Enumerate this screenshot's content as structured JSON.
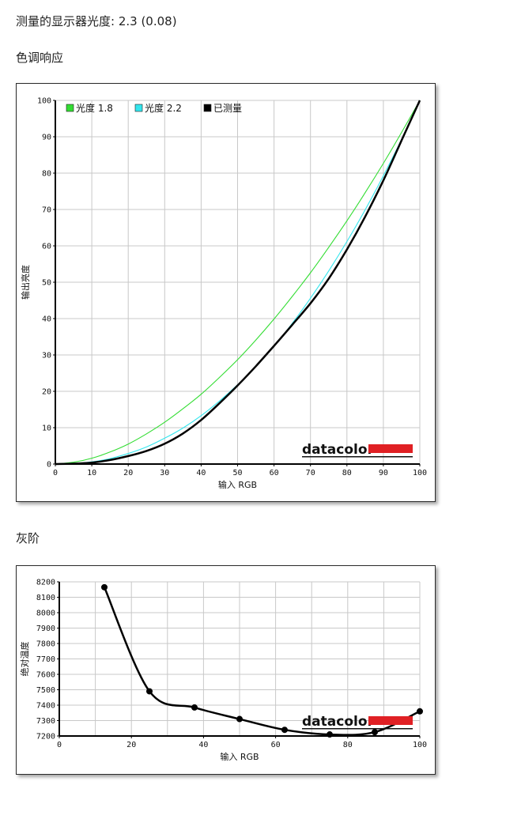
{
  "page": {
    "gamma_heading": "测量的显示器光度: 2.3 (0.08)",
    "tone_heading": "色调响应",
    "gray_heading": "灰阶"
  },
  "colors": {
    "gamma18": "#33dd33",
    "gamma22": "#33e6ee",
    "measured": "#000000",
    "grid": "#c8c8c8",
    "brand_bar": "#e02024"
  },
  "chart_data": [
    {
      "type": "line",
      "xlabel": "输入 RGB",
      "ylabel": "输出亮度",
      "xlim": [
        0,
        100
      ],
      "ylim": [
        0,
        100
      ],
      "xticks": [
        0,
        10,
        20,
        30,
        40,
        50,
        60,
        70,
        80,
        90,
        100
      ],
      "yticks": [
        0,
        10,
        20,
        30,
        40,
        50,
        60,
        70,
        80,
        90,
        100
      ],
      "grid": true,
      "legend_position": "top-left",
      "brand": "datacolor",
      "series": [
        {
          "name": "光度 1.8",
          "color_key": "gamma18",
          "x": [
            0,
            5,
            10,
            15,
            20,
            25,
            30,
            35,
            40,
            45,
            50,
            55,
            60,
            65,
            70,
            75,
            80,
            85,
            90,
            95,
            100
          ],
          "y": [
            0,
            0.5,
            1.6,
            3.3,
            5.5,
            8.3,
            11.5,
            15.2,
            19.2,
            23.8,
            28.7,
            34.1,
            39.9,
            46.1,
            52.6,
            59.6,
            66.9,
            74.6,
            82.7,
            91.2,
            100
          ]
        },
        {
          "name": "光度 2.2",
          "color_key": "gamma22",
          "x": [
            0,
            5,
            10,
            15,
            20,
            25,
            30,
            35,
            40,
            45,
            50,
            55,
            60,
            65,
            70,
            75,
            80,
            85,
            90,
            95,
            100
          ],
          "y": [
            0,
            0.1,
            0.6,
            1.5,
            2.9,
            4.7,
            7.1,
            9.9,
            13.3,
            17.3,
            21.8,
            26.8,
            32.4,
            38.7,
            45.6,
            53.1,
            61.2,
            69.9,
            79.3,
            89.3,
            100
          ]
        },
        {
          "name": "已测量",
          "color_key": "measured",
          "x": [
            0,
            5,
            10,
            15,
            20,
            25,
            30,
            35,
            40,
            45,
            50,
            55,
            60,
            65,
            70,
            75,
            80,
            85,
            90,
            95,
            100
          ],
          "y": [
            0,
            0.1,
            0.4,
            1.1,
            2.2,
            3.6,
            5.6,
            8.4,
            12.1,
            16.7,
            21.6,
            26.9,
            32.5,
            38.3,
            44.2,
            51.0,
            59.0,
            68.0,
            78.0,
            89.0,
            100
          ]
        }
      ]
    },
    {
      "type": "line",
      "xlabel": "输入 RGB",
      "ylabel": "绝对温度",
      "xlim": [
        0,
        100
      ],
      "ylim": [
        7200,
        8200
      ],
      "xticks": [
        0,
        20,
        40,
        60,
        80,
        100
      ],
      "yticks": [
        7200,
        7300,
        7400,
        7500,
        7600,
        7700,
        7800,
        7900,
        8000,
        8100,
        8200
      ],
      "grid": true,
      "brand": "datacolor",
      "series": [
        {
          "color_key": "measured",
          "markers": true,
          "x": [
            12.5,
            25,
            37.5,
            50,
            62.5,
            75,
            87.5,
            100
          ],
          "y": [
            8165,
            7490,
            7385,
            7310,
            7240,
            7210,
            7225,
            7360
          ]
        }
      ]
    }
  ]
}
